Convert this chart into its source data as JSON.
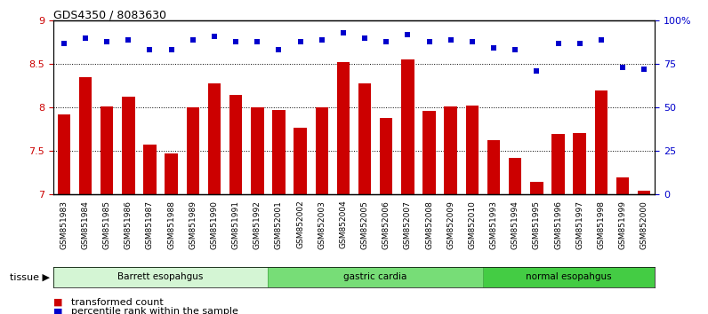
{
  "title": "GDS4350 / 8083630",
  "samples": [
    "GSM851983",
    "GSM851984",
    "GSM851985",
    "GSM851986",
    "GSM851987",
    "GSM851988",
    "GSM851989",
    "GSM851990",
    "GSM851991",
    "GSM851992",
    "GSM852001",
    "GSM852002",
    "GSM852003",
    "GSM852004",
    "GSM852005",
    "GSM852006",
    "GSM852007",
    "GSM852008",
    "GSM852009",
    "GSM852010",
    "GSM851993",
    "GSM851994",
    "GSM851995",
    "GSM851996",
    "GSM851997",
    "GSM851998",
    "GSM851999",
    "GSM852000"
  ],
  "bar_values": [
    7.92,
    8.35,
    8.01,
    8.12,
    7.57,
    7.47,
    8.0,
    8.28,
    8.14,
    8.0,
    7.97,
    7.77,
    8.0,
    8.52,
    8.28,
    7.88,
    8.55,
    7.96,
    8.01,
    8.02,
    7.63,
    7.42,
    7.15,
    7.7,
    7.71,
    8.2,
    7.2,
    7.05
  ],
  "percentile_values": [
    87,
    90,
    88,
    89,
    83,
    83,
    89,
    91,
    88,
    88,
    83,
    88,
    89,
    93,
    90,
    88,
    92,
    88,
    89,
    88,
    84,
    83,
    71,
    87,
    87,
    89,
    73,
    72
  ],
  "groups": [
    {
      "label": "Barrett esopahgus",
      "start": 0,
      "end": 10,
      "color": "#d4f5d4",
      "edge": "#44aa44"
    },
    {
      "label": "gastric cardia",
      "start": 10,
      "end": 20,
      "color": "#77dd77",
      "edge": "#44aa44"
    },
    {
      "label": "normal esopahgus",
      "start": 20,
      "end": 28,
      "color": "#44cc44",
      "edge": "#44aa44"
    }
  ],
  "bar_color": "#cc0000",
  "dot_color": "#0000cc",
  "ylim_left": [
    7.0,
    9.0
  ],
  "ylim_right": [
    0,
    100
  ],
  "yticks_left": [
    7.0,
    7.5,
    8.0,
    8.5,
    9.0
  ],
  "yticks_right": [
    0,
    25,
    50,
    75,
    100
  ],
  "ytick_labels_right": [
    "0",
    "25",
    "50",
    "75",
    "100%"
  ],
  "grid_lines": [
    7.5,
    8.0,
    8.5
  ],
  "plot_bg": "#ffffff",
  "legend_items": [
    {
      "label": "transformed count",
      "color": "#cc0000"
    },
    {
      "label": "percentile rank within the sample",
      "color": "#0000cc"
    }
  ],
  "tissue_label": "tissue"
}
